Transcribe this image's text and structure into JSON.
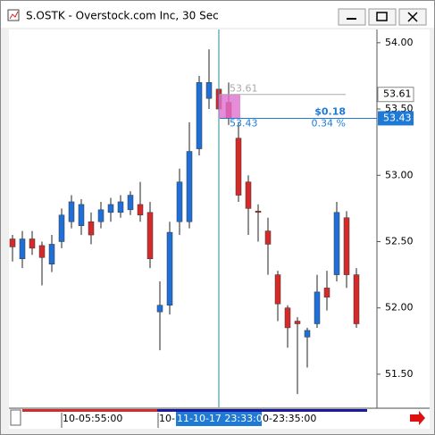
{
  "window": {
    "title": "S.OSTK - Overstock.com Inc, 30 Sec"
  },
  "chart_data": {
    "type": "candlestick",
    "up_color": "#1f6fd6",
    "down_color": "#d42a2a",
    "open": [
      52.52,
      52.37,
      52.52,
      52.47,
      52.33,
      52.5,
      52.65,
      52.62,
      52.65,
      52.65,
      52.72,
      52.72,
      52.74,
      52.78,
      52.72,
      51.97,
      52.02,
      52.65,
      52.65,
      53.2,
      53.58,
      53.65,
      53.55,
      53.28,
      52.95,
      52.73,
      52.58,
      52.25,
      52.0,
      51.9,
      51.78,
      51.88,
      52.15,
      52.25,
      52.68,
      52.25
    ],
    "high": [
      52.55,
      52.58,
      52.58,
      52.5,
      52.55,
      52.75,
      52.85,
      52.82,
      52.72,
      52.8,
      52.83,
      52.85,
      52.88,
      52.95,
      52.8,
      52.2,
      52.65,
      53.05,
      53.4,
      53.75,
      53.95,
      53.75,
      53.7,
      53.4,
      53.0,
      52.78,
      52.68,
      52.28,
      52.02,
      51.93,
      51.85,
      52.25,
      52.28,
      52.8,
      52.73,
      52.3
    ],
    "low": [
      52.35,
      52.3,
      52.4,
      52.17,
      52.27,
      52.45,
      52.6,
      52.55,
      52.48,
      52.6,
      52.65,
      52.68,
      52.7,
      52.65,
      52.3,
      51.68,
      51.95,
      52.55,
      52.6,
      53.15,
      53.5,
      53.4,
      53.38,
      52.8,
      52.55,
      52.5,
      52.25,
      51.9,
      51.7,
      51.35,
      51.55,
      51.85,
      51.98,
      52.2,
      52.15,
      51.85
    ],
    "close": [
      52.46,
      52.52,
      52.45,
      52.38,
      52.48,
      52.7,
      52.8,
      52.78,
      52.55,
      52.74,
      52.78,
      52.8,
      52.85,
      52.7,
      52.37,
      52.02,
      52.57,
      52.95,
      53.18,
      53.7,
      53.7,
      53.5,
      53.43,
      52.85,
      52.75,
      52.72,
      52.48,
      52.03,
      51.85,
      51.88,
      51.83,
      52.12,
      52.08,
      52.72,
      52.25,
      51.88
    ],
    "ylim": [
      51.25,
      54.1
    ],
    "yticks": [
      {
        "value": 54,
        "label": "54.00"
      },
      {
        "value": 53.5,
        "label": "53.50"
      },
      {
        "value": 53,
        "label": "53.00"
      },
      {
        "value": 52.5,
        "label": "52.50"
      },
      {
        "value": 52,
        "label": "52.00"
      },
      {
        "value": 51.5,
        "label": "51.50"
      }
    ],
    "x_labels": [
      "10-05:55:00",
      "10-",
      "11-10-17 23:33:00",
      "0-23:35:00"
    ],
    "measure": {
      "start": 53.61,
      "end": 53.43,
      "change_label": "$0.18",
      "percent_label": "0.34 %"
    }
  }
}
